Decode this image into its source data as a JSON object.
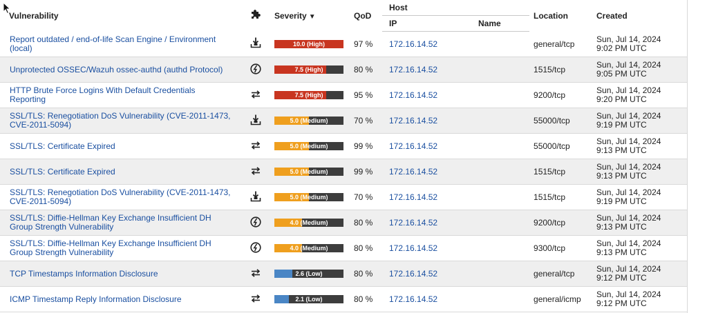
{
  "header": {
    "vulnerability": "Vulnerability",
    "severity": "Severity",
    "sort_arrow": "▼",
    "qod": "QoD",
    "host": "Host",
    "ip": "IP",
    "name": "Name",
    "location": "Location",
    "created": "Created",
    "solution_icon": "puzzle-piece-icon"
  },
  "colors": {
    "high": "#c83520",
    "medium": "#ef9f1e",
    "low": "#4a86c5",
    "link": "#1a4fa0"
  },
  "rows": [
    {
      "name": "Report outdated / end-of-life Scan Engine / Environment (local)",
      "solution": "vendorfix",
      "severity": "10.0 (High)",
      "severity_score": 10.0,
      "level": "high",
      "qod": "97 %",
      "ip": "172.16.14.52",
      "host_name": "",
      "location": "general/tcp",
      "created_date": "Sun, Jul 14, 2024",
      "created_time": "9:02 PM UTC"
    },
    {
      "name": "Unprotected OSSEC/Wazuh ossec-authd (authd Protocol)",
      "solution": "mitigation",
      "severity": "7.5 (High)",
      "severity_score": 7.5,
      "level": "high",
      "qod": "80 %",
      "ip": "172.16.14.52",
      "host_name": "",
      "location": "1515/tcp",
      "created_date": "Sun, Jul 14, 2024",
      "created_time": "9:05 PM UTC"
    },
    {
      "name": "HTTP Brute Force Logins With Default Credentials Reporting",
      "solution": "workaround",
      "severity": "7.5 (High)",
      "severity_score": 7.5,
      "level": "high",
      "qod": "95 %",
      "ip": "172.16.14.52",
      "host_name": "",
      "location": "9200/tcp",
      "created_date": "Sun, Jul 14, 2024",
      "created_time": "9:20 PM UTC"
    },
    {
      "name": "SSL/TLS: Renegotiation DoS Vulnerability (CVE-2011-1473, CVE-2011-5094)",
      "solution": "vendorfix",
      "severity": "5.0 (Medium)",
      "severity_score": 5.0,
      "level": "medium",
      "qod": "70 %",
      "ip": "172.16.14.52",
      "host_name": "",
      "location": "55000/tcp",
      "created_date": "Sun, Jul 14, 2024",
      "created_time": "9:19 PM UTC"
    },
    {
      "name": "SSL/TLS: Certificate Expired",
      "solution": "workaround",
      "severity": "5.0 (Medium)",
      "severity_score": 5.0,
      "level": "medium",
      "qod": "99 %",
      "ip": "172.16.14.52",
      "host_name": "",
      "location": "55000/tcp",
      "created_date": "Sun, Jul 14, 2024",
      "created_time": "9:13 PM UTC"
    },
    {
      "name": "SSL/TLS: Certificate Expired",
      "solution": "workaround",
      "severity": "5.0 (Medium)",
      "severity_score": 5.0,
      "level": "medium",
      "qod": "99 %",
      "ip": "172.16.14.52",
      "host_name": "",
      "location": "1515/tcp",
      "created_date": "Sun, Jul 14, 2024",
      "created_time": "9:13 PM UTC"
    },
    {
      "name": "SSL/TLS: Renegotiation DoS Vulnerability (CVE-2011-1473, CVE-2011-5094)",
      "solution": "vendorfix",
      "severity": "5.0 (Medium)",
      "severity_score": 5.0,
      "level": "medium",
      "qod": "70 %",
      "ip": "172.16.14.52",
      "host_name": "",
      "location": "1515/tcp",
      "created_date": "Sun, Jul 14, 2024",
      "created_time": "9:19 PM UTC"
    },
    {
      "name": "SSL/TLS: Diffie-Hellman Key Exchange Insufficient DH Group Strength Vulnerability",
      "solution": "mitigation",
      "severity": "4.0 (Medium)",
      "severity_score": 4.0,
      "level": "medium",
      "qod": "80 %",
      "ip": "172.16.14.52",
      "host_name": "",
      "location": "9200/tcp",
      "created_date": "Sun, Jul 14, 2024",
      "created_time": "9:13 PM UTC"
    },
    {
      "name": "SSL/TLS: Diffie-Hellman Key Exchange Insufficient DH Group Strength Vulnerability",
      "solution": "mitigation",
      "severity": "4.0 (Medium)",
      "severity_score": 4.0,
      "level": "medium",
      "qod": "80 %",
      "ip": "172.16.14.52",
      "host_name": "",
      "location": "9300/tcp",
      "created_date": "Sun, Jul 14, 2024",
      "created_time": "9:13 PM UTC"
    },
    {
      "name": "TCP Timestamps Information Disclosure",
      "solution": "workaround",
      "severity": "2.6 (Low)",
      "severity_score": 2.6,
      "level": "low",
      "qod": "80 %",
      "ip": "172.16.14.52",
      "host_name": "",
      "location": "general/tcp",
      "created_date": "Sun, Jul 14, 2024",
      "created_time": "9:12 PM UTC"
    },
    {
      "name": "ICMP Timestamp Reply Information Disclosure",
      "solution": "workaround",
      "severity": "2.1 (Low)",
      "severity_score": 2.1,
      "level": "low",
      "qod": "80 %",
      "ip": "172.16.14.52",
      "host_name": "",
      "location": "general/icmp",
      "created_date": "Sun, Jul 14, 2024",
      "created_time": "9:12 PM UTC"
    }
  ]
}
